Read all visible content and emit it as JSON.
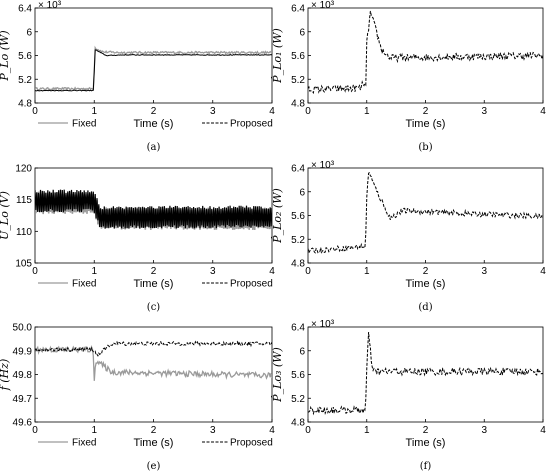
{
  "chart_data": [
    {
      "id": "a",
      "type": "line",
      "caption": "(a)",
      "ylabel": "P_Lo (W)",
      "multiplier": "× 10³",
      "xlabel": "Time (s)",
      "xlim": [
        0,
        4
      ],
      "ylim": [
        4800,
        6400
      ],
      "xticks": [
        0,
        1,
        2,
        3,
        4
      ],
      "yticks": [
        4800,
        5200,
        5600,
        6000,
        6400
      ],
      "ytick_labels": [
        "4.8",
        "5.2",
        "5.6",
        "6",
        "6.4"
      ],
      "legend": {
        "position": "bottom-outside",
        "entries": [
          "Fixed",
          "Proposed"
        ]
      },
      "series": [
        {
          "name": "Fixed",
          "style": "solid-gray",
          "noise": 18,
          "points": [
            [
              0,
              5040
            ],
            [
              0.99,
              5040
            ],
            [
              1.01,
              5730
            ],
            [
              1.15,
              5660
            ],
            [
              1.4,
              5650
            ],
            [
              4,
              5650
            ]
          ]
        },
        {
          "name": "Proposed",
          "style": "solid-black",
          "noise": 6,
          "points": [
            [
              0,
              5010
            ],
            [
              0.99,
              5010
            ],
            [
              1.01,
              5700
            ],
            [
              1.2,
              5600
            ],
            [
              1.5,
              5610
            ],
            [
              4,
              5610
            ]
          ]
        }
      ]
    },
    {
      "id": "b",
      "type": "line",
      "caption": "(b)",
      "ylabel": "P̂_Lo₁ (W)",
      "multiplier": "× 10³",
      "xlabel": "Time (s)",
      "xlim": [
        0,
        4
      ],
      "ylim": [
        4800,
        6400
      ],
      "xticks": [
        0,
        1,
        2,
        3,
        4
      ],
      "yticks": [
        4800,
        5200,
        5600,
        6000,
        6400
      ],
      "ytick_labels": [
        "4.8",
        "5.2",
        "5.6",
        "6",
        "6.4"
      ],
      "series": [
        {
          "name": "Proposed",
          "style": "dashed-black",
          "noise": 60,
          "points": [
            [
              0,
              5030
            ],
            [
              0.9,
              5050
            ],
            [
              0.95,
              5150
            ],
            [
              0.99,
              5050
            ],
            [
              1.0,
              5800
            ],
            [
              1.06,
              6320
            ],
            [
              1.15,
              6050
            ],
            [
              1.25,
              5700
            ],
            [
              1.4,
              5560
            ],
            [
              4,
              5600
            ]
          ]
        }
      ]
    },
    {
      "id": "c",
      "type": "line",
      "caption": "(c)",
      "ylabel": "U_Lo (V)",
      "xlabel": "Time (s)",
      "xlim": [
        0,
        4
      ],
      "ylim": [
        105,
        120
      ],
      "xticks": [
        0,
        1,
        2,
        3,
        4
      ],
      "yticks": [
        105,
        110,
        115,
        120
      ],
      "ytick_labels": [
        "105",
        "110",
        "115",
        "120"
      ],
      "legend": {
        "position": "bottom-outside",
        "entries": [
          "Fixed",
          "Proposed"
        ]
      },
      "series": [
        {
          "name": "Fixed",
          "style": "band-gray",
          "band": 1.8,
          "points": [
            [
              0,
              114.5
            ],
            [
              0.99,
              114.5
            ],
            [
              1.1,
              112.0
            ],
            [
              4,
              112.0
            ]
          ]
        },
        {
          "name": "Proposed",
          "style": "band-black",
          "band": 1.8,
          "points": [
            [
              0,
              114.8
            ],
            [
              0.99,
              114.8
            ],
            [
              1.1,
              112.2
            ],
            [
              4,
              112.3
            ]
          ]
        }
      ]
    },
    {
      "id": "d",
      "type": "line",
      "caption": "(d)",
      "ylabel": "P̂_Lo₂ (W)",
      "multiplier": "× 10³",
      "xlabel": "Time (s)",
      "xlim": [
        0,
        4
      ],
      "ylim": [
        4800,
        6400
      ],
      "xticks": [
        0,
        1,
        2,
        3,
        4
      ],
      "yticks": [
        4800,
        5200,
        5600,
        6000,
        6400
      ],
      "ytick_labels": [
        "4.8",
        "5.2",
        "5.6",
        "6",
        "6.4"
      ],
      "series": [
        {
          "name": "Proposed",
          "style": "dashed-black",
          "noise": 45,
          "points": [
            [
              0,
              5000
            ],
            [
              0.98,
              5080
            ],
            [
              1.0,
              5900
            ],
            [
              1.03,
              6350
            ],
            [
              1.15,
              6050
            ],
            [
              1.3,
              5750
            ],
            [
              1.4,
              5550
            ],
            [
              1.6,
              5680
            ],
            [
              4,
              5580
            ]
          ]
        }
      ]
    },
    {
      "id": "e",
      "type": "line",
      "caption": "(e)",
      "ylabel": "f (Hz)",
      "xlabel": "Time (s)",
      "xlim": [
        0,
        4
      ],
      "ylim": [
        49.6,
        50.0
      ],
      "xticks": [
        0,
        1,
        2,
        3,
        4
      ],
      "yticks": [
        49.6,
        49.7,
        49.8,
        49.9,
        50.0
      ],
      "ytick_labels": [
        "49.6",
        "49.7",
        "49.8",
        "49.9",
        "50.0"
      ],
      "legend": {
        "position": "bottom-outside",
        "entries": [
          "Fixed",
          "Proposed"
        ]
      },
      "series": [
        {
          "name": "Fixed",
          "style": "solid-gray",
          "noise": 0.012,
          "points": [
            [
              0,
              49.905
            ],
            [
              0.98,
              49.905
            ],
            [
              1.0,
              49.78
            ],
            [
              1.02,
              49.86
            ],
            [
              1.3,
              49.81
            ],
            [
              4,
              49.795
            ]
          ]
        },
        {
          "name": "Proposed",
          "style": "dashed-black",
          "noise": 0.008,
          "points": [
            [
              0,
              49.905
            ],
            [
              0.98,
              49.905
            ],
            [
              1.05,
              49.88
            ],
            [
              1.3,
              49.93
            ],
            [
              4,
              49.93
            ]
          ]
        }
      ]
    },
    {
      "id": "f",
      "type": "line",
      "caption": "(f)",
      "ylabel": "P̂_Lo₃ (W)",
      "multiplier": "× 10³",
      "xlabel": "Time (s)",
      "xlim": [
        0,
        4
      ],
      "ylim": [
        4800,
        6400
      ],
      "xticks": [
        0,
        1,
        2,
        3,
        4
      ],
      "yticks": [
        4800,
        5200,
        5600,
        6000,
        6400
      ],
      "ytick_labels": [
        "4.8",
        "5.2",
        "5.6",
        "6",
        "6.4"
      ],
      "series": [
        {
          "name": "Proposed",
          "style": "dashed-black",
          "noise": 60,
          "points": [
            [
              0,
              5000
            ],
            [
              0.98,
              5000
            ],
            [
              1.0,
              5700
            ],
            [
              1.03,
              6280
            ],
            [
              1.1,
              5650
            ],
            [
              4,
              5650
            ]
          ]
        }
      ]
    }
  ]
}
